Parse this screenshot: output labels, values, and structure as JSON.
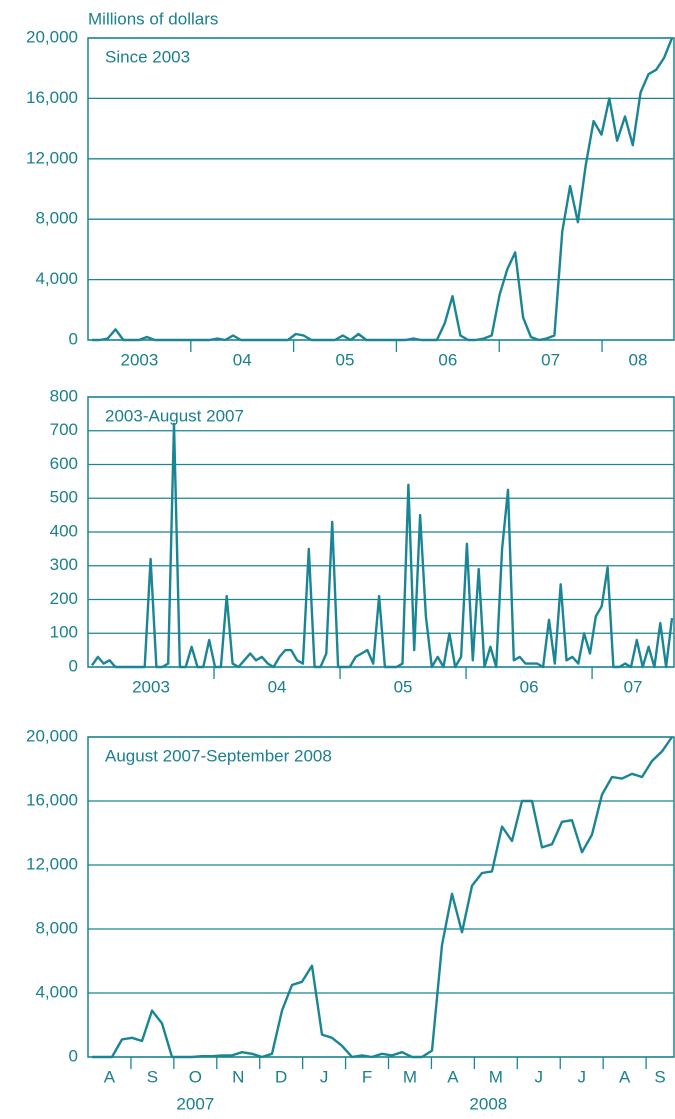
{
  "chart_data": [
    {
      "type": "line",
      "title": "Since 2003",
      "y_label": "Millions of dollars",
      "color": "#1a8595",
      "x_tick_labels": [
        "2003",
        "04",
        "05",
        "06",
        "07",
        "08"
      ],
      "values": [
        0,
        0,
        100,
        700,
        0,
        0,
        0,
        200,
        0,
        0,
        0,
        0,
        0,
        0,
        0,
        0,
        100,
        0,
        300,
        0,
        0,
        0,
        0,
        0,
        0,
        0,
        400,
        300,
        0,
        0,
        0,
        0,
        300,
        0,
        400,
        0,
        0,
        0,
        0,
        0,
        0,
        100,
        0,
        0,
        0,
        1100,
        2900,
        300,
        0,
        0,
        100,
        300,
        3000,
        4700,
        5800,
        1500,
        200,
        0,
        100,
        300,
        7200,
        10200,
        7800,
        11600,
        14500,
        13600,
        16000,
        13200,
        14800,
        12900,
        16400,
        17600,
        17900,
        18700,
        20000
      ],
      "ylim": [
        0,
        20000
      ],
      "yticks": [
        0,
        {
          "value": 4000,
          "label": "4,000"
        },
        {
          "value": 8000,
          "label": "8,000"
        },
        {
          "value": 12000,
          "label": "12,000"
        },
        {
          "value": 16000,
          "label": "16,000"
        },
        {
          "value": 20000,
          "label": "20,000"
        }
      ],
      "grid": true
    },
    {
      "type": "line",
      "title": "2003-August 2007",
      "color": "#1a8595",
      "x_tick_labels": [
        "2003",
        "04",
        "05",
        "06",
        "07"
      ],
      "values": [
        5,
        30,
        10,
        20,
        0,
        0,
        0,
        0,
        0,
        0,
        320,
        0,
        0,
        10,
        720,
        0,
        0,
        60,
        0,
        0,
        80,
        0,
        0,
        210,
        10,
        0,
        20,
        40,
        20,
        30,
        10,
        0,
        30,
        50,
        50,
        20,
        10,
        350,
        0,
        0,
        40,
        430,
        0,
        0,
        0,
        30,
        40,
        50,
        10,
        210,
        0,
        0,
        0,
        10,
        540,
        50,
        450,
        150,
        0,
        30,
        0,
        100,
        0,
        30,
        365,
        20,
        290,
        0,
        60,
        0,
        350,
        525,
        20,
        30,
        10,
        10,
        10,
        0,
        140,
        10,
        245,
        20,
        30,
        10,
        100,
        40,
        150,
        180,
        295,
        0,
        0,
        10,
        0,
        80,
        0,
        60,
        0,
        130,
        0,
        145
      ],
      "ylim": [
        0,
        800
      ],
      "yticks": [
        0,
        100,
        200,
        300,
        400,
        500,
        600,
        700,
        800
      ],
      "grid": true
    },
    {
      "type": "line",
      "title": "August 2007-September 2008",
      "color": "#1a8595",
      "x_tick_labels": [
        "A",
        "S",
        "O",
        "N",
        "D",
        "J",
        "F",
        "M",
        "A",
        "M",
        "J",
        "J",
        "A",
        "S"
      ],
      "x_group_labels": [
        "2007",
        "2008"
      ],
      "values": [
        0,
        0,
        0,
        1100,
        1200,
        1000,
        2900,
        2100,
        0,
        0,
        0,
        50,
        50,
        100,
        100,
        300,
        200,
        0,
        200,
        2900,
        4500,
        4700,
        5700,
        1400,
        1200,
        700,
        0,
        100,
        0,
        200,
        100,
        300,
        0,
        0,
        400,
        7000,
        10200,
        7800,
        10700,
        11500,
        11600,
        14400,
        13500,
        16000,
        16000,
        13100,
        13300,
        14700,
        14800,
        12800,
        13900,
        16400,
        17500,
        17400,
        17700,
        17500,
        18500,
        19100,
        20000
      ],
      "ylim": [
        0,
        20000
      ],
      "yticks": [
        0,
        {
          "value": 4000,
          "label": "4,000"
        },
        {
          "value": 8000,
          "label": "8,000"
        },
        {
          "value": 12000,
          "label": "12,000"
        },
        {
          "value": 16000,
          "label": "16,000"
        },
        {
          "value": 20000,
          "label": "20,000"
        }
      ],
      "grid": true
    }
  ]
}
